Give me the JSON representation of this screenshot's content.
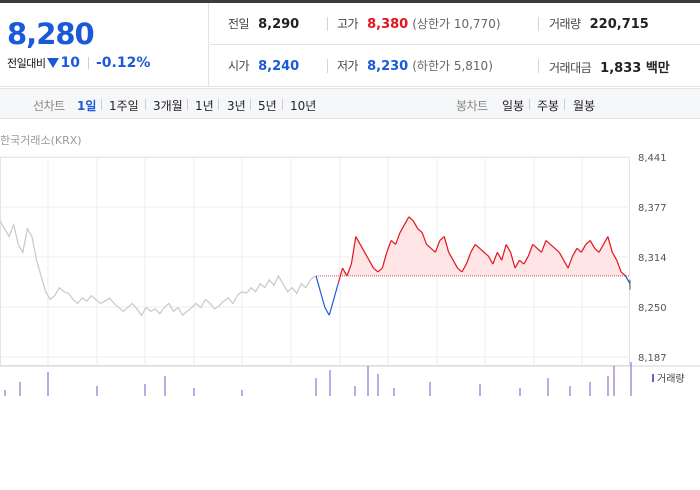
{
  "price": {
    "current": "8,280",
    "change_label": "전일대비",
    "change_amount": "10",
    "change_pct": "-0.12%"
  },
  "stats": {
    "prev_close": {
      "label": "전일",
      "value": "8,290"
    },
    "high": {
      "label": "고가",
      "value": "8,380",
      "sub": "(상한가 10,770)"
    },
    "volume": {
      "label": "거래량",
      "value": "220,715"
    },
    "open": {
      "label": "시가",
      "value": "8,240"
    },
    "low": {
      "label": "저가",
      "value": "8,230",
      "sub": "(하한가 5,810)"
    },
    "amount": {
      "label": "거래대금",
      "value": "1,833 백만"
    }
  },
  "tabs": {
    "line_label": "선차트",
    "line_tabs": [
      "1일",
      "1주일",
      "3개월",
      "1년",
      "3년",
      "5년",
      "10년"
    ],
    "candle_label": "봉차트",
    "candle_tabs": [
      "일봉",
      "주봉",
      "월봉"
    ]
  },
  "chart": {
    "source": "한국거래소(KRX)",
    "volume_label": "거래량"
  },
  "chart_data": {
    "type": "line",
    "y_ticks": [
      "8,441",
      "8,377",
      "8,314",
      "8,250",
      "8,187"
    ],
    "ylim": [
      8187,
      8441
    ],
    "reference": 8290,
    "prev_day_series": [
      8360,
      8350,
      8340,
      8355,
      8330,
      8320,
      8350,
      8340,
      8310,
      8290,
      8270,
      8260,
      8265,
      8275,
      8270,
      8268,
      8260,
      8255,
      8262,
      8258,
      8265,
      8260,
      8255,
      8258,
      8262,
      8255,
      8250,
      8245,
      8250,
      8255,
      8248,
      8240,
      8250,
      8245,
      8248,
      8242,
      8250,
      8255,
      8245,
      8250,
      8240,
      8245,
      8250,
      8255,
      8250,
      8260,
      8255,
      8248,
      8252,
      8258,
      8262,
      8255,
      8265,
      8270,
      8268,
      8275,
      8270,
      8280,
      8275,
      8285,
      8278,
      8290,
      8280,
      8270,
      8275,
      8268,
      8280,
      8275,
      8285,
      8290
    ],
    "today_series": [
      8290,
      8270,
      8250,
      8240,
      8260,
      8280,
      8300,
      8290,
      8305,
      8340,
      8330,
      8320,
      8310,
      8300,
      8295,
      8300,
      8320,
      8335,
      8330,
      8345,
      8355,
      8365,
      8360,
      8350,
      8345,
      8330,
      8325,
      8320,
      8335,
      8340,
      8320,
      8310,
      8300,
      8295,
      8305,
      8320,
      8330,
      8325,
      8320,
      8315,
      8305,
      8320,
      8310,
      8330,
      8320,
      8300,
      8310,
      8305,
      8315,
      8330,
      8325,
      8320,
      8335,
      8330,
      8325,
      8320,
      8310,
      8300,
      8315,
      8325,
      8320,
      8330,
      8335,
      8325,
      8320,
      8330,
      8340,
      8320,
      8310,
      8295,
      8290,
      8280
    ]
  },
  "colors": {
    "up": "#e0141d",
    "down": "#1a5ad8",
    "prev_line": "#c8c8c8",
    "volume": "#7c55c0"
  }
}
